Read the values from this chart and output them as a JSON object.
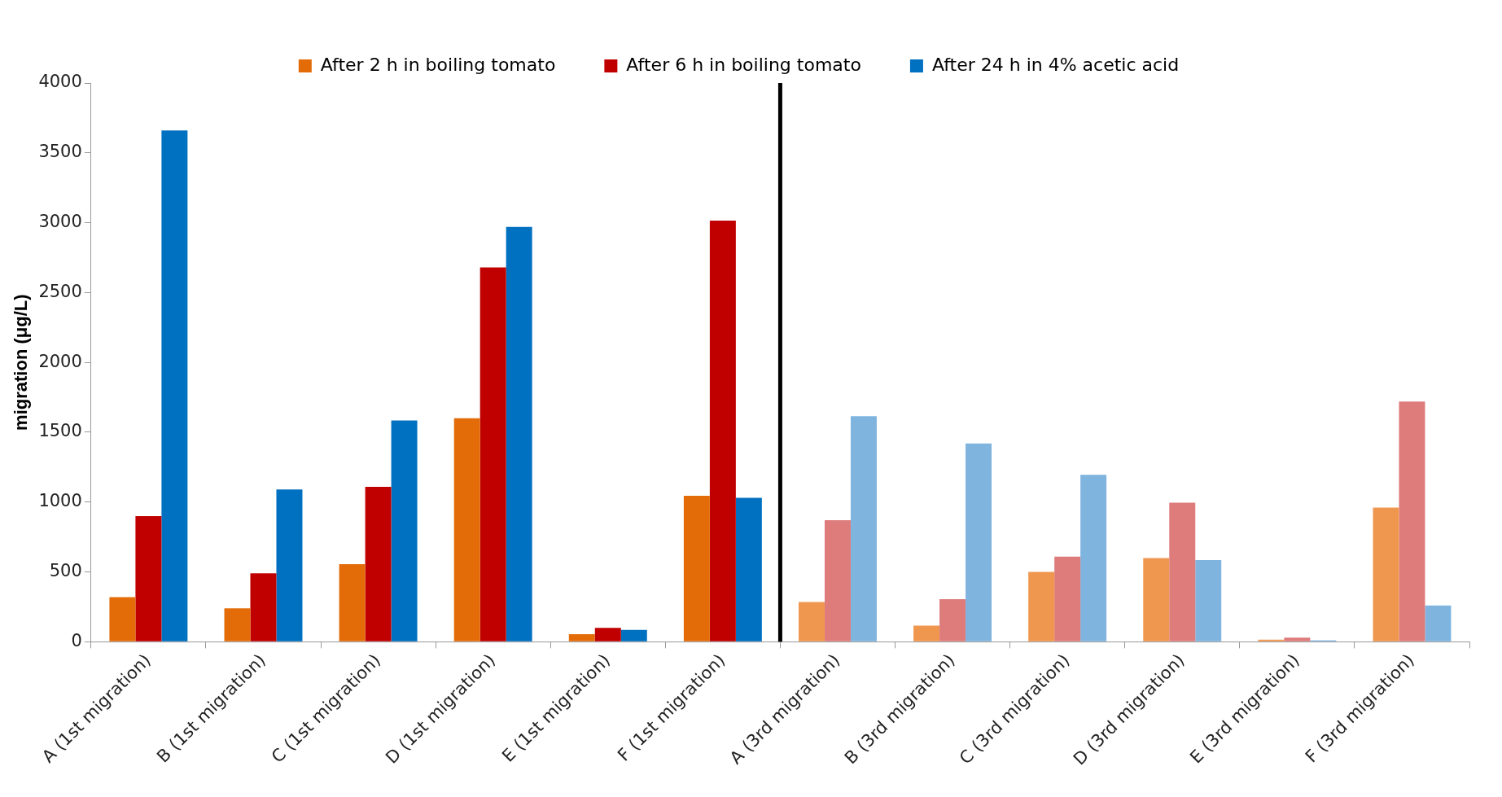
{
  "chart_data": {
    "type": "bar",
    "ylabel": "migration (μg/L)",
    "categories": [
      "A (1st migration)",
      "B (1st migration)",
      "C (1st migration)",
      "D (1st migration)",
      "E (1st migration)",
      "F (1st migration)",
      "A (3rd migration)",
      "B (3rd migration)",
      "C (3rd migration)",
      "D (3rd migration)",
      "E (3rd migration)",
      "F (3rd migration)"
    ],
    "series": [
      {
        "name": "After 2 h in boiling tomato",
        "color": "#e36c09",
        "colors": [
          "#e36c09",
          "#e36c09",
          "#e36c09",
          "#e36c09",
          "#e36c09",
          "#e36c09",
          "#f0974f",
          "#f0974f",
          "#f0974f",
          "#f0974f",
          "#f0974f",
          "#f0974f"
        ],
        "values": [
          320,
          240,
          555,
          1600,
          55,
          1045,
          285,
          115,
          500,
          600,
          15,
          960
        ]
      },
      {
        "name": "After 6 h in boiling tomato",
        "color": "#c00000",
        "colors": [
          "#c00000",
          "#c00000",
          "#c00000",
          "#c00000",
          "#c00000",
          "#c00000",
          "#de7b7b",
          "#de7b7b",
          "#de7b7b",
          "#de7b7b",
          "#de7b7b",
          "#de7b7b"
        ],
        "values": [
          900,
          490,
          1110,
          2680,
          100,
          3015,
          870,
          305,
          610,
          995,
          30,
          1720
        ]
      },
      {
        "name": "After 24 h in 4% acetic acid",
        "color": "#0070c0",
        "colors": [
          "#0070c0",
          "#0070c0",
          "#0070c0",
          "#0070c0",
          "#0070c0",
          "#0070c0",
          "#7fb4df",
          "#7fb4df",
          "#7fb4df",
          "#7fb4df",
          "#7fb4df",
          "#7fb4df"
        ],
        "values": [
          3660,
          1090,
          1585,
          2970,
          85,
          1030,
          1615,
          1420,
          1195,
          585,
          10,
          260
        ]
      }
    ],
    "ylim": [
      0,
      4000
    ],
    "yticks": [
      0,
      500,
      1000,
      1500,
      2000,
      2500,
      3000,
      3500,
      4000
    ],
    "grid": false,
    "legend": "top"
  }
}
